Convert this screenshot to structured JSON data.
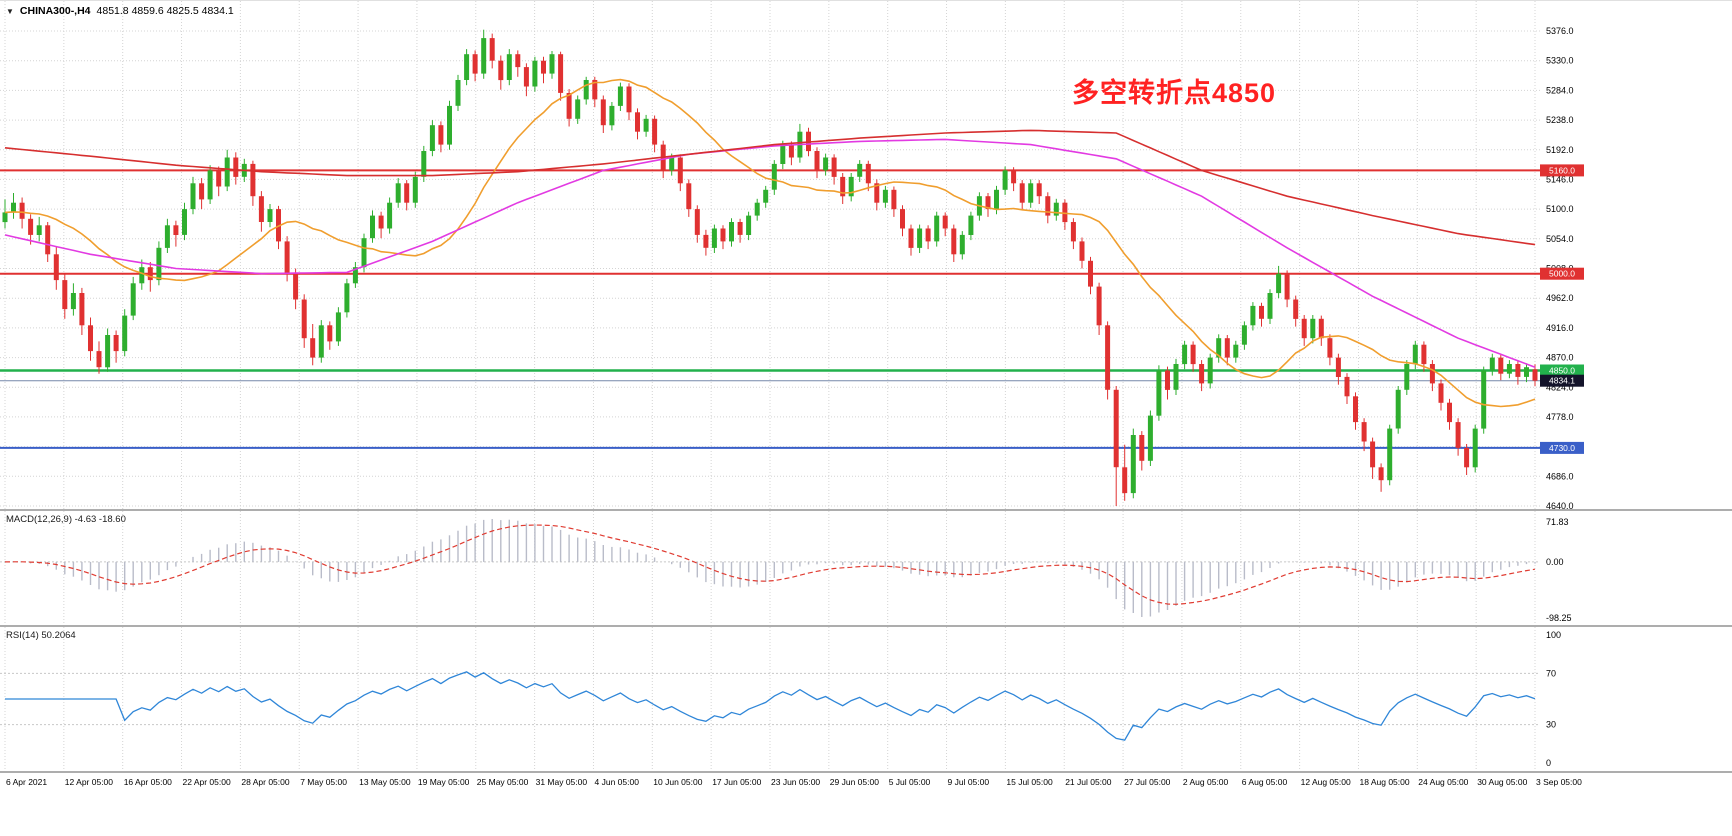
{
  "header": {
    "symbol": "CHINA300-,H4",
    "ohlc": "4851.8 4859.6 4825.5 4834.1"
  },
  "icons": {
    "dropdown": "▼"
  },
  "annotation": {
    "text": "多空转折点4850",
    "color": "#ff2222"
  },
  "indicators": {
    "macd": {
      "label": "MACD(12,26,9) -4.63 -18.60"
    },
    "rsi": {
      "label": "RSI(14) 50.2064"
    }
  },
  "chart_data": {
    "type": "candlestick",
    "symbol": "CHINA300-",
    "timeframe": "H4",
    "title": "CHINA300- H4 candlestick chart with MA, horizontal levels, MACD and RSI",
    "colors": {
      "bull": "#2eae2e",
      "bear": "#e03131",
      "grid": "#d4d4d4",
      "ma_slow": "#d62f2f",
      "ma_mid": "#e23ae2",
      "ma_fast": "#f09e2e",
      "macd_hist": "#b9bcc9",
      "macd_signal": "#e03c32",
      "rsi_line": "#2f86d8"
    },
    "y_ticks": [
      "5376.0",
      "5330.0",
      "5284.0",
      "5238.0",
      "5192.0",
      "5146.0",
      "5100.0",
      "5054.0",
      "5008.0",
      "4962.0",
      "4916.0",
      "4870.0",
      "4824.0",
      "4778.0",
      "4732.0",
      "4686.0",
      "4640.0"
    ],
    "y_range": {
      "max": 5376.0,
      "min": 4640.0
    },
    "x_labels": [
      "6 Apr 2021",
      "12 Apr 05:00",
      "16 Apr 05:00",
      "22 Apr 05:00",
      "28 Apr 05:00",
      "7 May 05:00",
      "13 May 05:00",
      "19 May 05:00",
      "25 May 05:00",
      "31 May 05:00",
      "4 Jun 05:00",
      "10 Jun 05:00",
      "17 Jun 05:00",
      "23 Jun 05:00",
      "29 Jun 05:00",
      "5 Jul 05:00",
      "9 Jul 05:00",
      "15 Jul 05:00",
      "21 Jul 05:00",
      "27 Jul 05:00",
      "2 Aug 05:00",
      "6 Aug 05:00",
      "12 Aug 05:00",
      "18 Aug 05:00",
      "24 Aug 05:00",
      "30 Aug 05:00",
      "3 Sep 05:00"
    ],
    "hlines": [
      {
        "price": 5160.0,
        "label": "5160.0",
        "color": "#e03131",
        "width": 2
      },
      {
        "price": 5000.0,
        "label": "5000.0",
        "color": "#e03131",
        "width": 2
      },
      {
        "price": 4850.0,
        "label": "4850.0",
        "color": "#22b14c",
        "width": 2.5
      },
      {
        "price": 4730.0,
        "label": "4730.0",
        "color": "#3a5fc8",
        "width": 2
      }
    ],
    "current_price": {
      "value": 4834.1,
      "label": "4834.1",
      "line_color": "#7788aa",
      "box_color": "#14142a"
    },
    "candles": [
      [
        5080,
        5115,
        5070,
        5095
      ],
      [
        5095,
        5125,
        5085,
        5110
      ],
      [
        5110,
        5118,
        5070,
        5085
      ],
      [
        5085,
        5092,
        5045,
        5060
      ],
      [
        5060,
        5088,
        5050,
        5075
      ],
      [
        5075,
        5080,
        5018,
        5030
      ],
      [
        5030,
        5042,
        4975,
        4990
      ],
      [
        4990,
        5000,
        4930,
        4945
      ],
      [
        4945,
        4985,
        4935,
        4970
      ],
      [
        4970,
        4978,
        4905,
        4920
      ],
      [
        4920,
        4932,
        4865,
        4880
      ],
      [
        4880,
        4895,
        4845,
        4855
      ],
      [
        4855,
        4915,
        4848,
        4905
      ],
      [
        4905,
        4912,
        4862,
        4880
      ],
      [
        4880,
        4945,
        4872,
        4935
      ],
      [
        4935,
        4995,
        4928,
        4985
      ],
      [
        4985,
        5022,
        4975,
        5010
      ],
      [
        5010,
        5018,
        4972,
        4990
      ],
      [
        4990,
        5050,
        4982,
        5040
      ],
      [
        5040,
        5085,
        5032,
        5075
      ],
      [
        5075,
        5082,
        5042,
        5060
      ],
      [
        5060,
        5110,
        5052,
        5100
      ],
      [
        5100,
        5150,
        5092,
        5140
      ],
      [
        5140,
        5148,
        5100,
        5115
      ],
      [
        5115,
        5168,
        5108,
        5160
      ],
      [
        5160,
        5166,
        5120,
        5135
      ],
      [
        5135,
        5192,
        5128,
        5180
      ],
      [
        5180,
        5188,
        5138,
        5150
      ],
      [
        5150,
        5178,
        5142,
        5170
      ],
      [
        5170,
        5175,
        5105,
        5120
      ],
      [
        5120,
        5128,
        5065,
        5080
      ],
      [
        5080,
        5108,
        5072,
        5100
      ],
      [
        5100,
        5105,
        5038,
        5050
      ],
      [
        5050,
        5058,
        4988,
        5000
      ],
      [
        5000,
        5008,
        4945,
        4960
      ],
      [
        4960,
        4968,
        4885,
        4900
      ],
      [
        4900,
        4922,
        4858,
        4870
      ],
      [
        4870,
        4928,
        4862,
        4920
      ],
      [
        4920,
        4926,
        4882,
        4895
      ],
      [
        4895,
        4948,
        4888,
        4940
      ],
      [
        4940,
        4992,
        4932,
        4985
      ],
      [
        4985,
        5018,
        4978,
        5010
      ],
      [
        5010,
        5062,
        5002,
        5055
      ],
      [
        5055,
        5098,
        5048,
        5090
      ],
      [
        5090,
        5096,
        5055,
        5070
      ],
      [
        5070,
        5118,
        5062,
        5110
      ],
      [
        5110,
        5148,
        5102,
        5140
      ],
      [
        5140,
        5145,
        5098,
        5110
      ],
      [
        5110,
        5158,
        5102,
        5150
      ],
      [
        5150,
        5198,
        5142,
        5190
      ],
      [
        5190,
        5238,
        5182,
        5230
      ],
      [
        5230,
        5236,
        5188,
        5200
      ],
      [
        5200,
        5268,
        5192,
        5260
      ],
      [
        5260,
        5308,
        5252,
        5300
      ],
      [
        5300,
        5348,
        5292,
        5340
      ],
      [
        5340,
        5346,
        5298,
        5310
      ],
      [
        5310,
        5378,
        5302,
        5365
      ],
      [
        5365,
        5372,
        5318,
        5330
      ],
      [
        5330,
        5338,
        5285,
        5300
      ],
      [
        5300,
        5348,
        5292,
        5340
      ],
      [
        5340,
        5346,
        5305,
        5320
      ],
      [
        5320,
        5326,
        5275,
        5290
      ],
      [
        5290,
        5336,
        5282,
        5330
      ],
      [
        5330,
        5336,
        5295,
        5310
      ],
      [
        5310,
        5345,
        5302,
        5340
      ],
      [
        5340,
        5344,
        5268,
        5280
      ],
      [
        5280,
        5286,
        5228,
        5240
      ],
      [
        5240,
        5276,
        5232,
        5270
      ],
      [
        5270,
        5305,
        5262,
        5300
      ],
      [
        5300,
        5305,
        5258,
        5270
      ],
      [
        5270,
        5276,
        5218,
        5230
      ],
      [
        5230,
        5266,
        5222,
        5260
      ],
      [
        5260,
        5296,
        5252,
        5290
      ],
      [
        5290,
        5295,
        5238,
        5250
      ],
      [
        5250,
        5256,
        5208,
        5220
      ],
      [
        5220,
        5246,
        5212,
        5240
      ],
      [
        5240,
        5245,
        5188,
        5200
      ],
      [
        5200,
        5206,
        5148,
        5160
      ],
      [
        5160,
        5186,
        5152,
        5180
      ],
      [
        5180,
        5185,
        5128,
        5140
      ],
      [
        5140,
        5146,
        5088,
        5100
      ],
      [
        5100,
        5106,
        5048,
        5060
      ],
      [
        5060,
        5068,
        5028,
        5040
      ],
      [
        5040,
        5076,
        5032,
        5070
      ],
      [
        5070,
        5075,
        5038,
        5050
      ],
      [
        5050,
        5086,
        5042,
        5080
      ],
      [
        5080,
        5085,
        5048,
        5060
      ],
      [
        5060,
        5096,
        5052,
        5090
      ],
      [
        5090,
        5116,
        5082,
        5110
      ],
      [
        5110,
        5136,
        5102,
        5130
      ],
      [
        5130,
        5176,
        5122,
        5170
      ],
      [
        5170,
        5206,
        5162,
        5200
      ],
      [
        5200,
        5205,
        5168,
        5180
      ],
      [
        5180,
        5232,
        5172,
        5220
      ],
      [
        5220,
        5226,
        5182,
        5190
      ],
      [
        5190,
        5196,
        5148,
        5160
      ],
      [
        5160,
        5186,
        5152,
        5180
      ],
      [
        5180,
        5185,
        5138,
        5150
      ],
      [
        5150,
        5156,
        5108,
        5120
      ],
      [
        5120,
        5156,
        5112,
        5150
      ],
      [
        5150,
        5176,
        5142,
        5170
      ],
      [
        5170,
        5175,
        5128,
        5140
      ],
      [
        5140,
        5146,
        5098,
        5110
      ],
      [
        5110,
        5136,
        5102,
        5130
      ],
      [
        5130,
        5135,
        5088,
        5100
      ],
      [
        5100,
        5106,
        5058,
        5070
      ],
      [
        5070,
        5076,
        5028,
        5040
      ],
      [
        5040,
        5076,
        5032,
        5070
      ],
      [
        5070,
        5075,
        5038,
        5050
      ],
      [
        5050,
        5096,
        5042,
        5090
      ],
      [
        5090,
        5095,
        5058,
        5070
      ],
      [
        5070,
        5076,
        5018,
        5030
      ],
      [
        5030,
        5066,
        5022,
        5060
      ],
      [
        5060,
        5096,
        5052,
        5090
      ],
      [
        5090,
        5126,
        5082,
        5120
      ],
      [
        5120,
        5125,
        5088,
        5100
      ],
      [
        5100,
        5136,
        5092,
        5130
      ],
      [
        5130,
        5166,
        5122,
        5160
      ],
      [
        5160,
        5165,
        5128,
        5140
      ],
      [
        5140,
        5145,
        5098,
        5110
      ],
      [
        5110,
        5146,
        5102,
        5140
      ],
      [
        5140,
        5145,
        5108,
        5120
      ],
      [
        5120,
        5126,
        5078,
        5090
      ],
      [
        5090,
        5116,
        5082,
        5110
      ],
      [
        5110,
        5115,
        5068,
        5080
      ],
      [
        5080,
        5086,
        5038,
        5050
      ],
      [
        5050,
        5056,
        5008,
        5020
      ],
      [
        5020,
        5026,
        4968,
        4980
      ],
      [
        4980,
        4986,
        4905,
        4920
      ],
      [
        4920,
        4926,
        4805,
        4820
      ],
      [
        4820,
        4826,
        4640,
        4700
      ],
      [
        4700,
        4735,
        4648,
        4660
      ],
      [
        4660,
        4760,
        4652,
        4750
      ],
      [
        4750,
        4756,
        4695,
        4710
      ],
      [
        4710,
        4788,
        4702,
        4780
      ],
      [
        4780,
        4858,
        4772,
        4850
      ],
      [
        4850,
        4856,
        4805,
        4820
      ],
      [
        4820,
        4868,
        4812,
        4860
      ],
      [
        4860,
        4896,
        4852,
        4890
      ],
      [
        4890,
        4895,
        4848,
        4860
      ],
      [
        4860,
        4866,
        4818,
        4830
      ],
      [
        4830,
        4876,
        4822,
        4870
      ],
      [
        4870,
        4906,
        4862,
        4900
      ],
      [
        4900,
        4905,
        4858,
        4870
      ],
      [
        4870,
        4896,
        4862,
        4890
      ],
      [
        4890,
        4926,
        4882,
        4920
      ],
      [
        4920,
        4956,
        4912,
        4950
      ],
      [
        4950,
        4955,
        4918,
        4930
      ],
      [
        4930,
        4976,
        4922,
        4970
      ],
      [
        4970,
        5012,
        4962,
        5000
      ],
      [
        5000,
        5005,
        4948,
        4960
      ],
      [
        4960,
        4966,
        4918,
        4930
      ],
      [
        4930,
        4936,
        4888,
        4900
      ],
      [
        4900,
        4936,
        4892,
        4930
      ],
      [
        4930,
        4935,
        4888,
        4900
      ],
      [
        4900,
        4906,
        4858,
        4870
      ],
      [
        4870,
        4876,
        4828,
        4840
      ],
      [
        4840,
        4846,
        4798,
        4810
      ],
      [
        4810,
        4816,
        4758,
        4770
      ],
      [
        4770,
        4776,
        4725,
        4740
      ],
      [
        4740,
        4746,
        4682,
        4700
      ],
      [
        4700,
        4706,
        4662,
        4680
      ],
      [
        4680,
        4766,
        4672,
        4760
      ],
      [
        4760,
        4826,
        4752,
        4820
      ],
      [
        4820,
        4866,
        4812,
        4860
      ],
      [
        4860,
        4896,
        4852,
        4890
      ],
      [
        4890,
        4895,
        4848,
        4860
      ],
      [
        4860,
        4866,
        4818,
        4830
      ],
      [
        4830,
        4836,
        4788,
        4800
      ],
      [
        4800,
        4806,
        4758,
        4770
      ],
      [
        4770,
        4776,
        4718,
        4730
      ],
      [
        4730,
        4736,
        4688,
        4700
      ],
      [
        4700,
        4766,
        4692,
        4760
      ],
      [
        4760,
        4856,
        4752,
        4850
      ],
      [
        4850,
        4876,
        4842,
        4870
      ],
      [
        4870,
        4875,
        4835,
        4845
      ],
      [
        4845,
        4866,
        4838,
        4860
      ],
      [
        4860,
        4865,
        4828,
        4840
      ],
      [
        4840,
        4861,
        4832,
        4855
      ],
      [
        4851.8,
        4859.6,
        4825.5,
        4834.1
      ]
    ],
    "moving_averages": {
      "sample_indices": [
        0,
        10,
        20,
        30,
        40,
        50,
        60,
        70,
        80,
        90,
        100,
        110,
        120,
        130,
        140,
        150,
        160,
        170,
        179
      ],
      "slow_red": [
        5195,
        5182,
        5168,
        5158,
        5152,
        5152,
        5158,
        5170,
        5185,
        5200,
        5210,
        5218,
        5222,
        5218,
        5160,
        5120,
        5090,
        5062,
        5045
      ],
      "mid_magenta": [
        5060,
        5030,
        5008,
        5000,
        5002,
        5050,
        5110,
        5160,
        5185,
        5198,
        5205,
        5208,
        5200,
        5178,
        5120,
        5040,
        4965,
        4900,
        4855
      ],
      "fast_orange_period": 20
    },
    "macd": {
      "fast": 12,
      "slow": 26,
      "signal": 9,
      "value_main": -4.63,
      "value_signal": -18.6,
      "scale_labels": {
        "max": "71.83",
        "zero": "0.00",
        "min": "-98.25"
      }
    },
    "rsi": {
      "period": 14,
      "value": 50.2064,
      "levels": [
        70,
        30
      ],
      "scale_labels": [
        "100",
        "70",
        "30",
        "0"
      ]
    }
  }
}
